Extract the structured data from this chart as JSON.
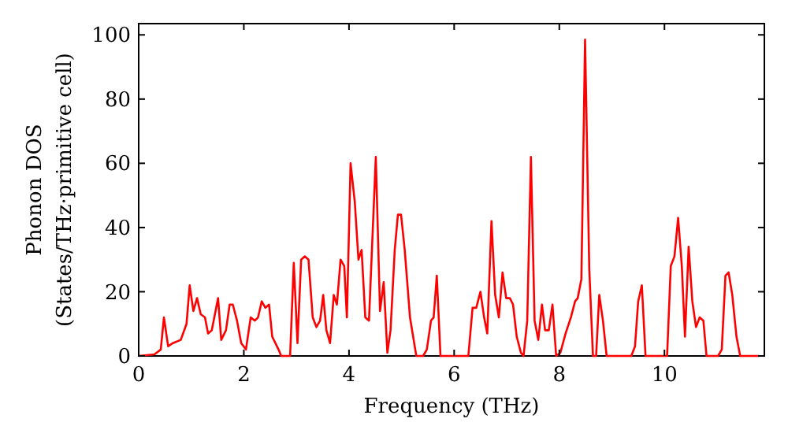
{
  "chart_data": {
    "type": "line",
    "xlabel": "Frequency (THz)",
    "ylabel": "Phonon DOS\n(States/THz·primitive cell)",
    "xlim": [
      0,
      11.9
    ],
    "ylim": [
      0,
      103.5
    ],
    "xticks": [
      0,
      2,
      4,
      6,
      8,
      10
    ],
    "yticks": [
      0,
      20,
      40,
      60,
      80,
      100
    ],
    "grid": false,
    "series": [
      {
        "color": "#ff0000",
        "x": [
          0,
          0.3,
          0.42,
          0.48,
          0.56,
          0.65,
          0.8,
          0.91,
          0.97,
          1.04,
          1.11,
          1.18,
          1.26,
          1.32,
          1.39,
          1.51,
          1.57,
          1.66,
          1.73,
          1.79,
          1.87,
          1.95,
          2.04,
          2.13,
          2.21,
          2.27,
          2.34,
          2.41,
          2.48,
          2.54,
          2.66,
          2.71,
          2.88,
          2.95,
          3.02,
          3.09,
          3.16,
          3.23,
          3.31,
          3.38,
          3.45,
          3.51,
          3.57,
          3.64,
          3.71,
          3.77,
          3.84,
          3.91,
          3.96,
          4.03,
          4.11,
          4.18,
          4.24,
          4.31,
          4.38,
          4.51,
          4.59,
          4.66,
          4.73,
          4.79,
          4.87,
          4.93,
          4.99,
          5.06,
          5.16,
          5.28,
          5.41,
          5.48,
          5.56,
          5.61,
          5.67,
          5.74,
          6.27,
          6.35,
          6.42,
          6.5,
          6.57,
          6.63,
          6.71,
          6.78,
          6.85,
          6.92,
          6.99,
          7.06,
          7.12,
          7.19,
          7.27,
          7.32,
          7.39,
          7.46,
          7.53,
          7.6,
          7.67,
          7.73,
          7.8,
          7.87,
          7.94,
          8.02,
          8.12,
          8.22,
          8.3,
          8.35,
          8.42,
          8.49,
          8.57,
          8.64,
          8.7,
          8.76,
          8.83,
          8.9,
          9.37,
          9.44,
          9.5,
          9.57,
          9.64,
          10.05,
          10.12,
          10.19,
          10.26,
          10.33,
          10.39,
          10.46,
          10.53,
          10.6,
          10.67,
          10.74,
          10.8,
          11.02,
          11.09,
          11.16,
          11.22,
          11.29,
          11.37,
          11.44,
          11.8
        ],
        "values": [
          0,
          0.5,
          2,
          12,
          3,
          4,
          5,
          10,
          22,
          14,
          18,
          13,
          12,
          7,
          8,
          18,
          5,
          8,
          16,
          16,
          11,
          4,
          2,
          12,
          11,
          12,
          17,
          15,
          16,
          6,
          2,
          0,
          0,
          29,
          4,
          30,
          31,
          30,
          12,
          9,
          11,
          19,
          8,
          4,
          19,
          16,
          30,
          28,
          12,
          60,
          48,
          30,
          33,
          12,
          11,
          62,
          14,
          23,
          1,
          8,
          33,
          44,
          44,
          33,
          12,
          0,
          0,
          2,
          11,
          12,
          25,
          0,
          0,
          15,
          15,
          20,
          12,
          7,
          42,
          19,
          12,
          26,
          18,
          18,
          16,
          6,
          1,
          0,
          11,
          62,
          11,
          5,
          16,
          8,
          8,
          16,
          0,
          1,
          7,
          12,
          17,
          18,
          24,
          98.5,
          27,
          0,
          0,
          19,
          11,
          0,
          0,
          3,
          17,
          22,
          0,
          0,
          28,
          31,
          43,
          28,
          6,
          34,
          17,
          9,
          12,
          11,
          0,
          0,
          2,
          25,
          26,
          19,
          6,
          0,
          0
        ]
      }
    ]
  }
}
